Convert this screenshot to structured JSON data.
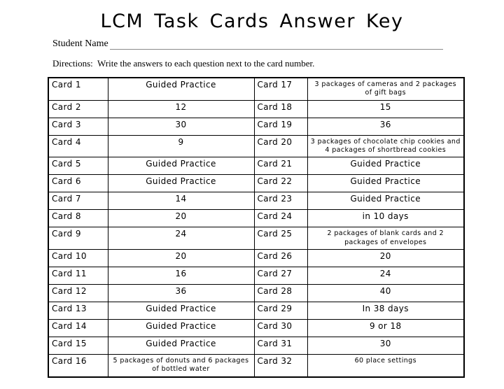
{
  "page": {
    "title": "LCM Task Cards Answer Key",
    "student_name_label": "Student Name",
    "directions": "Directions:  Write the answers to each question next to the card number."
  },
  "colors": {
    "text": "#000000",
    "table_border": "#000000",
    "underline": "#8a8a8a",
    "background": "#ffffff"
  },
  "table": {
    "rows": [
      {
        "left_card": "Card 1",
        "left_answer": "Guided Practice",
        "right_card": "Card 17",
        "right_answer": "3 packages of cameras and 2 packages of gift bags"
      },
      {
        "left_card": "Card 2",
        "left_answer": "12",
        "right_card": "Card 18",
        "right_answer": "15"
      },
      {
        "left_card": "Card 3",
        "left_answer": "30",
        "right_card": "Card 19",
        "right_answer": "36"
      },
      {
        "left_card": "Card 4",
        "left_answer": "9",
        "right_card": "Card 20",
        "right_answer": "3 packages of chocolate chip cookies and 4 packages of shortbread cookies"
      },
      {
        "left_card": "Card 5",
        "left_answer": "Guided Practice",
        "right_card": "Card 21",
        "right_answer": "Guided Practice"
      },
      {
        "left_card": "Card 6",
        "left_answer": "Guided Practice",
        "right_card": "Card 22",
        "right_answer": "Guided Practice"
      },
      {
        "left_card": "Card 7",
        "left_answer": "14",
        "right_card": "Card 23",
        "right_answer": "Guided Practice"
      },
      {
        "left_card": "Card 8",
        "left_answer": "20",
        "right_card": "Card 24",
        "right_answer": "in 10 days"
      },
      {
        "left_card": "Card 9",
        "left_answer": "24",
        "right_card": "Card 25",
        "right_answer": "2 packages of blank cards and 2 packages of envelopes"
      },
      {
        "left_card": "Card 10",
        "left_answer": "20",
        "right_card": "Card 26",
        "right_answer": "20"
      },
      {
        "left_card": "Card 11",
        "left_answer": "16",
        "right_card": "Card 27",
        "right_answer": "24"
      },
      {
        "left_card": "Card 12",
        "left_answer": "36",
        "right_card": "Card 28",
        "right_answer": "40"
      },
      {
        "left_card": "Card 13",
        "left_answer": "Guided Practice",
        "right_card": "Card 29",
        "right_answer": "In 38 days"
      },
      {
        "left_card": "Card 14",
        "left_answer": "Guided Practice",
        "right_card": "Card 30",
        "right_answer": "9 or 18"
      },
      {
        "left_card": "Card 15",
        "left_answer": "Guided Practice",
        "right_card": "Card 31",
        "right_answer": "30"
      },
      {
        "left_card": "Card 16",
        "left_answer": "5 packages of donuts and 6 packages of bottled water",
        "right_card": "Card 32",
        "right_answer": "60 place settings"
      }
    ]
  }
}
